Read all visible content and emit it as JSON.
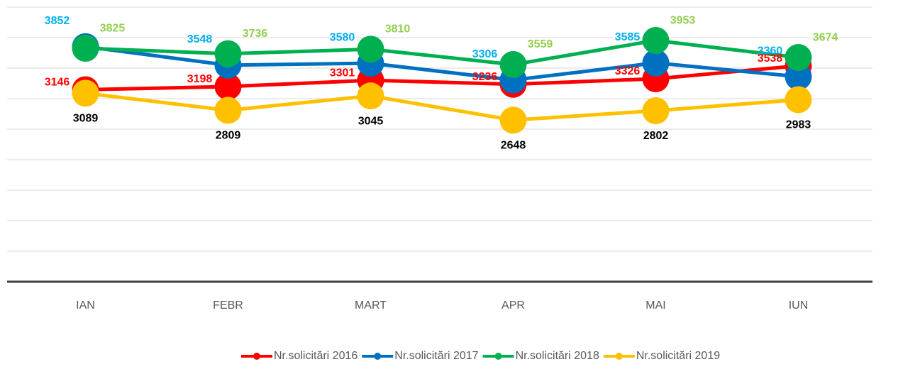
{
  "chart_data": {
    "type": "line",
    "categories": [
      "IAN",
      "FEBR",
      "MART",
      "APR",
      "MAI",
      "IUN"
    ],
    "series": [
      {
        "name": "Nr.solicitări 2016",
        "color": "#ff0000",
        "label_color": "#ff0000",
        "values": [
          3146,
          3198,
          3301,
          3236,
          3326,
          3538
        ]
      },
      {
        "name": "Nr.solicitări 2017",
        "color": "#0070c0",
        "label_color": "#00b0f0",
        "values": [
          3852,
          3548,
          3580,
          3306,
          3585,
          3360
        ]
      },
      {
        "name": "Nr.solicitări 2018",
        "color": "#00b050",
        "label_color": "#92d050",
        "values": [
          3825,
          3736,
          3810,
          3559,
          3953,
          3674
        ]
      },
      {
        "name": "Nr.solicitări 2019",
        "color": "#ffc000",
        "label_color": "#000000",
        "values": [
          3089,
          2809,
          3045,
          2648,
          2802,
          2983
        ]
      }
    ],
    "ylim": [
      0,
      4500
    ],
    "yticks": [
      0,
      500,
      1000,
      1500,
      2000,
      2500,
      3000,
      3500,
      4000,
      4500
    ],
    "grid": true,
    "legend": "bottom-right"
  }
}
